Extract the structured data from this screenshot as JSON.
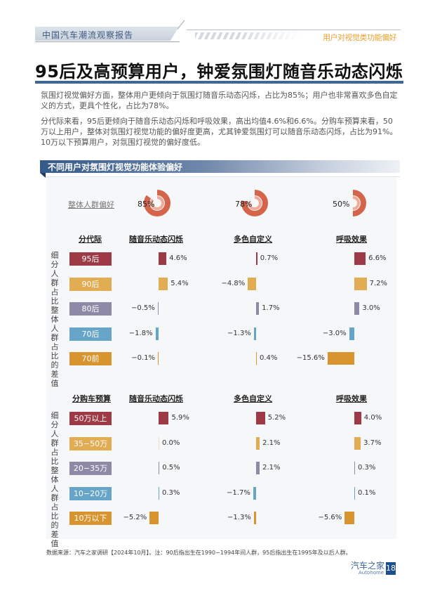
{
  "header": {
    "report_name": "中国汽车潮流观察报告",
    "section_name": "用户对视觉类功能偏好"
  },
  "title": "95后及高预算用户，钟爱氛围灯随音乐动态闪烁",
  "paragraphs": [
    "氛围灯视觉偏好方面，整体用户更倾向于氛围灯随音乐动态闪烁，占比为85%；用户也非常喜欢多色自定义的方式，更具个性化，占比为78%。",
    "分代际来看，95后更倾向于随音乐动态闪烁和呼吸效果，高出均值4.6%和6.6%。分购车预算来看，50万以上用户，整体对氛围灯视觉功能的偏好度更高，尤其钟爱氛围灯可以随音乐动态闪烁，占比为91%。10万以下预算用户，对氛围灯视觉的偏好度低。"
  ],
  "section_title": "不同用户对氛围灯视觉功能体验偏好",
  "overall": {
    "label": "整体人群偏好",
    "values": [
      {
        "metric": "随音乐动态闪烁",
        "pct": 85,
        "label": "85%"
      },
      {
        "metric": "多色自定义",
        "pct": 78,
        "label": "78%"
      },
      {
        "metric": "呼吸效果",
        "pct": 50,
        "label": "50%"
      }
    ]
  },
  "vertical_axis_label": "细分人群占比整体人群占比的差值",
  "colors": {
    "row1": "#9e3a46",
    "row2": "#e2ac52",
    "row3": "#8e89a6",
    "row4": "#66a5c7",
    "row5": "#d8952f",
    "donut_outer": "#d4644a",
    "donut_inner": "#efab98",
    "title_rule": "#3d6799",
    "header_accent": "#e8a12f"
  },
  "chart_data": [
    {
      "type": "bar",
      "title": "分代际",
      "ylabel": "细分人群占比整体人群占比的差值",
      "categories": [
        "95后",
        "90后",
        "80后",
        "70后",
        "70前"
      ],
      "series": [
        {
          "name": "随音乐动态闪烁",
          "values": [
            4.6,
            5.4,
            -0.5,
            -1.8,
            -0.1
          ]
        },
        {
          "name": "多色自定义",
          "values": [
            0.7,
            -4.8,
            1.7,
            -1.3,
            0.4
          ]
        },
        {
          "name": "呼吸效果",
          "values": [
            6.6,
            7.2,
            3.0,
            -3.0,
            -15.6
          ]
        }
      ],
      "unit": "%"
    },
    {
      "type": "bar",
      "title": "分购车预算",
      "ylabel": "细分人群占比整体人群占比的差值",
      "categories": [
        "50万以上",
        "35-50万",
        "20-35万",
        "10-20万",
        "10万以下"
      ],
      "series": [
        {
          "name": "随音乐动态闪烁",
          "values": [
            5.9,
            0.0,
            0.5,
            0.3,
            -5.2
          ]
        },
        {
          "name": "多色自定义",
          "values": [
            5.2,
            2.1,
            2.1,
            -1.7,
            -1.3
          ]
        },
        {
          "name": "呼吸效果",
          "values": [
            4.0,
            3.7,
            0.3,
            0.1,
            -5.6
          ]
        }
      ],
      "unit": "%"
    },
    {
      "type": "pie",
      "title": "整体人群偏好",
      "categories": [
        "随音乐动态闪烁",
        "多色自定义",
        "呼吸效果"
      ],
      "values": [
        85,
        78,
        50
      ],
      "unit": "%"
    }
  ],
  "groups": [
    {
      "header": "分代际",
      "metric_headers": [
        "随音乐动态闪烁",
        "多色自定义",
        "呼吸效果"
      ],
      "rows": [
        {
          "label": "95后",
          "values": [
            "4.6%",
            "0.7%",
            "6.6%"
          ]
        },
        {
          "label": "90后",
          "values": [
            "5.4%",
            "−4.8%",
            "7.2%"
          ]
        },
        {
          "label": "80后",
          "values": [
            "−0.5%",
            "1.7%",
            "3.0%"
          ]
        },
        {
          "label": "70后",
          "values": [
            "−1.8%",
            "−1.3%",
            "−3.0%"
          ]
        },
        {
          "label": "70前",
          "values": [
            "−0.1%",
            "0.4%",
            "−15.6%"
          ]
        }
      ]
    },
    {
      "header": "分购车预算",
      "metric_headers": [
        "随音乐动态闪烁",
        "多色自定义",
        "呼吸效果"
      ],
      "rows": [
        {
          "label": "50万以上",
          "values": [
            "5.9%",
            "5.2%",
            "4.0%"
          ]
        },
        {
          "label": "35−50万",
          "values": [
            "0.0%",
            "2.1%",
            "3.7%"
          ]
        },
        {
          "label": "20−35万",
          "values": [
            "0.5%",
            "2.1%",
            "0.3%"
          ]
        },
        {
          "label": "10−20万",
          "values": [
            "0.3%",
            "−1.7%",
            "0.1%"
          ]
        },
        {
          "label": "10万以下",
          "values": [
            "−5.2%",
            "−1.3%",
            "−5.6%"
          ]
        }
      ]
    }
  ],
  "footer": {
    "source": "数据来源：汽车之家调研【2024年10月】。注：90后指出生在1990−1994年间人群，95后指出生在1995年及以后人群。",
    "brand_cn": "汽车之家",
    "brand_en": "Autohome",
    "page_number": "18"
  }
}
